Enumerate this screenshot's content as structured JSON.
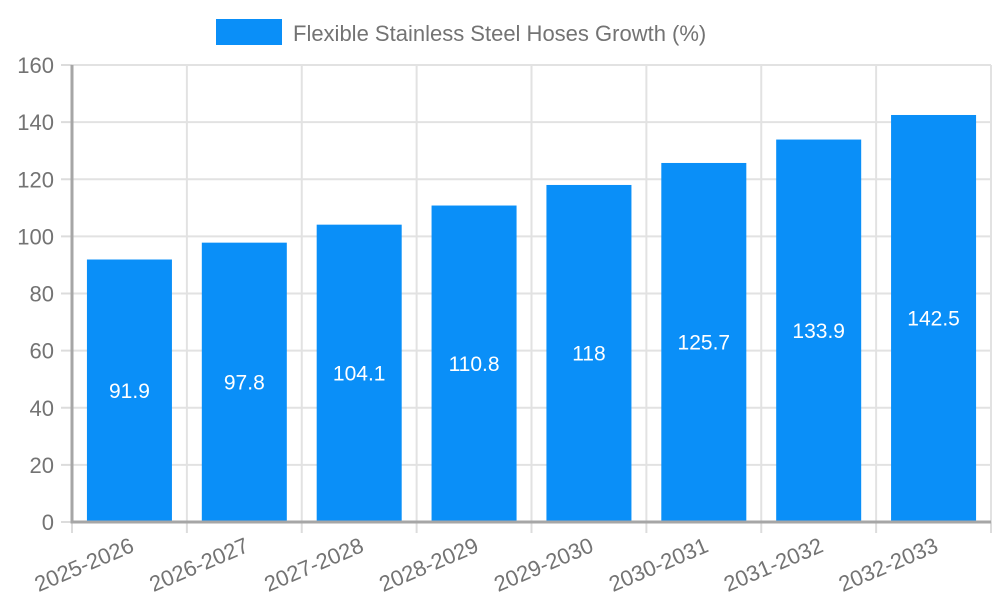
{
  "chart_data": {
    "type": "bar",
    "title": "",
    "legend": {
      "label": "Flexible Stainless Steel Hoses Growth (%)",
      "position": "top"
    },
    "categories": [
      "2025-2026",
      "2026-2027",
      "2027-2028",
      "2028-2029",
      "2029-2030",
      "2030-2031",
      "2031-2032",
      "2032-2033"
    ],
    "values": [
      91.9,
      97.8,
      104.1,
      110.8,
      118,
      125.7,
      133.9,
      142.5
    ],
    "value_labels": [
      "91.9",
      "97.8",
      "104.1",
      "110.8",
      "118",
      "125.7",
      "133.9",
      "142.5"
    ],
    "xlabel": "",
    "ylabel": "",
    "ylim": [
      0,
      160
    ],
    "ytick_step": 20,
    "yticks": [
      0,
      20,
      40,
      60,
      80,
      100,
      120,
      140,
      160
    ],
    "grid": true,
    "colors": {
      "bar": "#0a8ff8",
      "axis": "#a6a6a6",
      "grid": "#e2e2e2",
      "tick": "#dcdcdc",
      "tick_text": "#737373",
      "value_label": "#ffffff",
      "background": "#ffffff"
    }
  }
}
